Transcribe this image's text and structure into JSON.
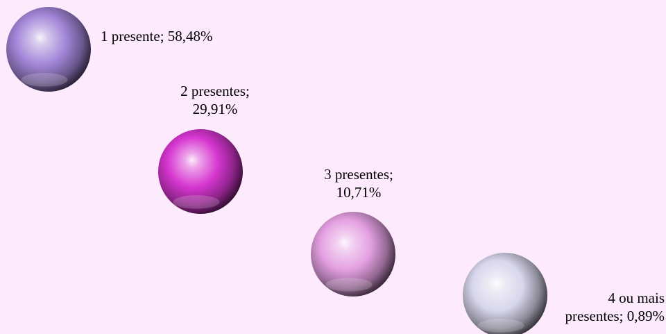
{
  "chart_data": {
    "type": "bubble",
    "title": "",
    "xlabel": "",
    "ylabel": "",
    "legend": "none",
    "grid": false,
    "background": "#fdebfd",
    "points": [
      {
        "label": "1 presente; 58,48%",
        "category": "1 presente",
        "value": 58.48,
        "color": "#a386d8"
      },
      {
        "label": "2 presentes;\n29,91%",
        "category": "2 presentes",
        "value": 29.91,
        "color": "#d636d0"
      },
      {
        "label": "3 presentes;\n10,71%",
        "category": "3 presentes",
        "value": 10.71,
        "color": "#e4a0e2"
      },
      {
        "label": "4 ou mais\npresentes; 0,89%",
        "category": "4 ou mais presentes",
        "value": 0.89,
        "color": "#d8d6ec"
      }
    ]
  }
}
